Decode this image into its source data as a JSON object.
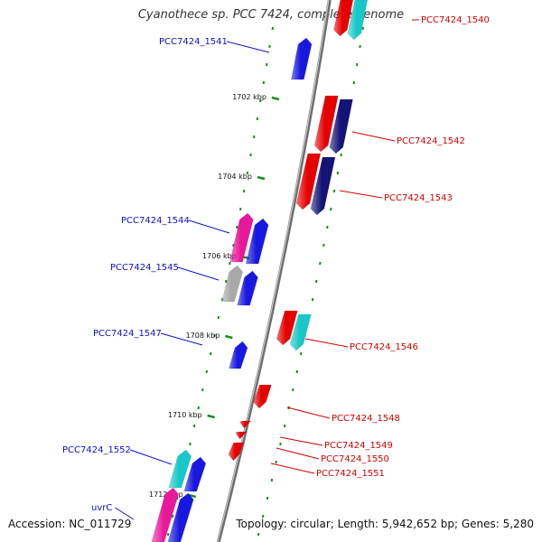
{
  "title": "Cyanothece sp. PCC 7424, complete genome",
  "accession": "Accession: NC_011729",
  "topology": "Topology: circular; Length: 5,942,652 bp; Genes: 5,280",
  "colors": {
    "backbone": "#8a8a8a",
    "tick": "#1c8c1c",
    "label_forward": "#1010c8",
    "label_reverse": "#d40000",
    "gene_blue": "#1818e0",
    "gene_red": "#e60000",
    "gene_navy": "#141478",
    "gene_cyan": "#18c8c8",
    "gene_magenta": "#e8189a",
    "gene_gray": "#a8a8a8"
  },
  "scale": {
    "ticks": [
      "1702 kbp",
      "1704 kbp",
      "1706 kbp",
      "1708 kbp",
      "1710 kbp",
      "1712 kbp"
    ]
  },
  "genes": [
    {
      "name": "PCC7424_1540",
      "strand": "reverse"
    },
    {
      "name": "PCC7424_1541",
      "strand": "forward"
    },
    {
      "name": "PCC7424_1542",
      "strand": "reverse"
    },
    {
      "name": "PCC7424_1543",
      "strand": "reverse"
    },
    {
      "name": "PCC7424_1544",
      "strand": "forward"
    },
    {
      "name": "PCC7424_1545",
      "strand": "forward"
    },
    {
      "name": "PCC7424_1546",
      "strand": "reverse"
    },
    {
      "name": "PCC7424_1547",
      "strand": "forward"
    },
    {
      "name": "PCC7424_1548",
      "strand": "reverse"
    },
    {
      "name": "PCC7424_1549",
      "strand": "reverse"
    },
    {
      "name": "PCC7424_1550",
      "strand": "reverse"
    },
    {
      "name": "PCC7424_1551",
      "strand": "reverse"
    },
    {
      "name": "PCC7424_1552",
      "strand": "forward"
    },
    {
      "name": "uvrC",
      "strand": "forward"
    }
  ]
}
